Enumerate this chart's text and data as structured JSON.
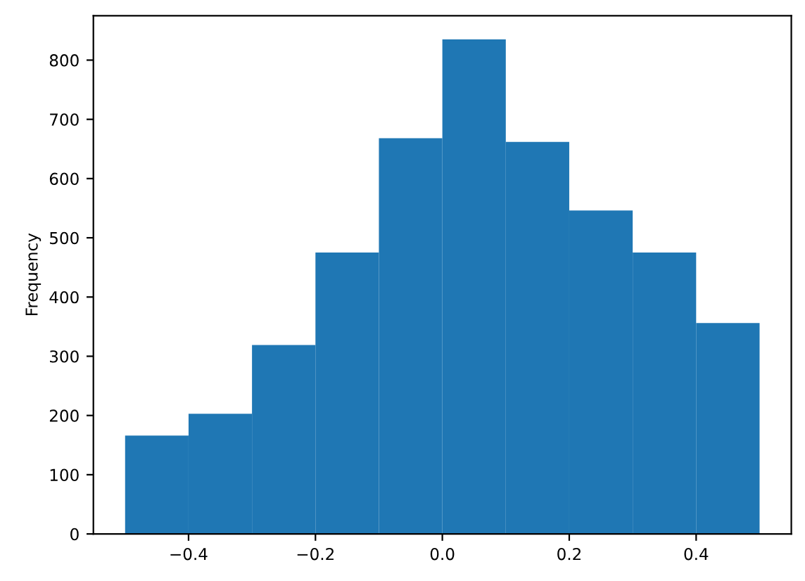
{
  "chart_data": {
    "type": "histogram",
    "ylabel": "Frequency",
    "bins": [
      -0.5,
      -0.4,
      -0.3,
      -0.2,
      -0.1,
      0.0,
      0.1,
      0.2,
      0.3,
      0.4,
      0.5
    ],
    "values": [
      166,
      203,
      319,
      475,
      668,
      835,
      662,
      546,
      475,
      356
    ],
    "color": "#1f77b4",
    "xlim": [
      -0.55,
      0.55
    ],
    "xticks": [
      {
        "value": -0.4,
        "label": "−0.4"
      },
      {
        "value": -0.2,
        "label": "−0.2"
      },
      {
        "value": 0.0,
        "label": "0.0"
      },
      0.2,
      0.4
    ],
    "ylim": [
      0,
      875
    ],
    "yticks": [
      0,
      100,
      200,
      300,
      400,
      500,
      600,
      700,
      800
    ],
    "grid": false
  }
}
